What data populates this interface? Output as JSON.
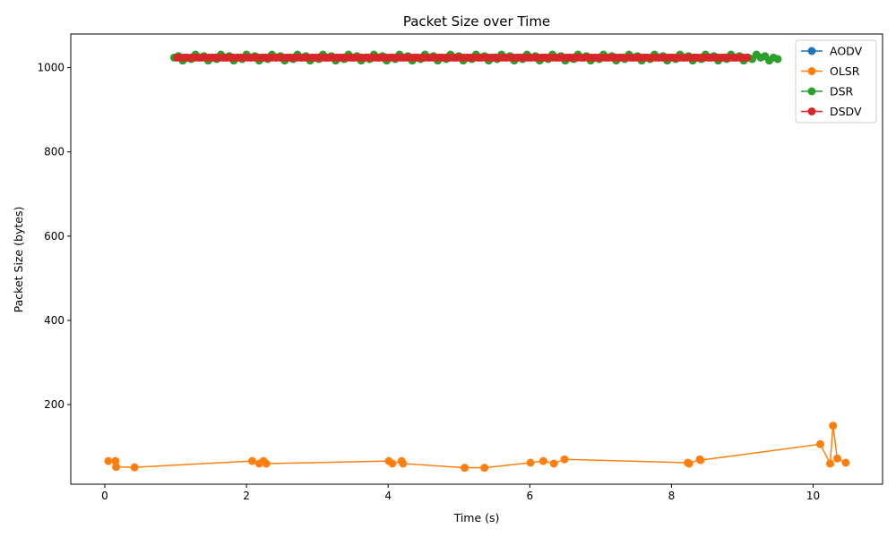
{
  "chart_data": {
    "type": "line",
    "title": "Packet Size over Time",
    "xlabel": "Time (s)",
    "ylabel": "Packet Size (bytes)",
    "xlim": [
      -0.48,
      10.98
    ],
    "ylim": [
      11,
      1080
    ],
    "x_ticks": [
      0,
      2,
      4,
      6,
      8,
      10
    ],
    "y_ticks": [
      200,
      400,
      600,
      800,
      1000
    ],
    "grid": false,
    "legend_position": "top-right",
    "series": [
      {
        "name": "AODV",
        "color": "#1f77b4",
        "x": [],
        "y": []
      },
      {
        "name": "OLSR",
        "color": "#ff7f0e",
        "x": [
          0.05,
          0.15,
          0.16,
          0.42,
          2.08,
          2.18,
          2.24,
          2.28,
          4.01,
          4.06,
          4.19,
          4.21,
          5.08,
          5.36,
          6.01,
          6.19,
          6.34,
          6.49,
          8.23,
          8.25,
          8.4,
          8.41,
          10.1,
          10.24,
          10.28,
          10.34,
          10.46
        ],
        "y": [
          66,
          66,
          52,
          51,
          66,
          60,
          66,
          60,
          66,
          60,
          66,
          60,
          50,
          50,
          62,
          66,
          60,
          70,
          62,
          60,
          70,
          68,
          106,
          60,
          150,
          72,
          62
        ]
      },
      {
        "name": "DSR",
        "color": "#2ca02c",
        "dense": {
          "start": 0.98,
          "end": 9.54,
          "step": 0.06,
          "y": 1024,
          "jitter": 7
        }
      },
      {
        "name": "DSDV",
        "color": "#d62728",
        "dense": {
          "start": 1.02,
          "end": 9.08,
          "step": 0.05,
          "y": 1024,
          "jitter": 0
        }
      }
    ]
  }
}
